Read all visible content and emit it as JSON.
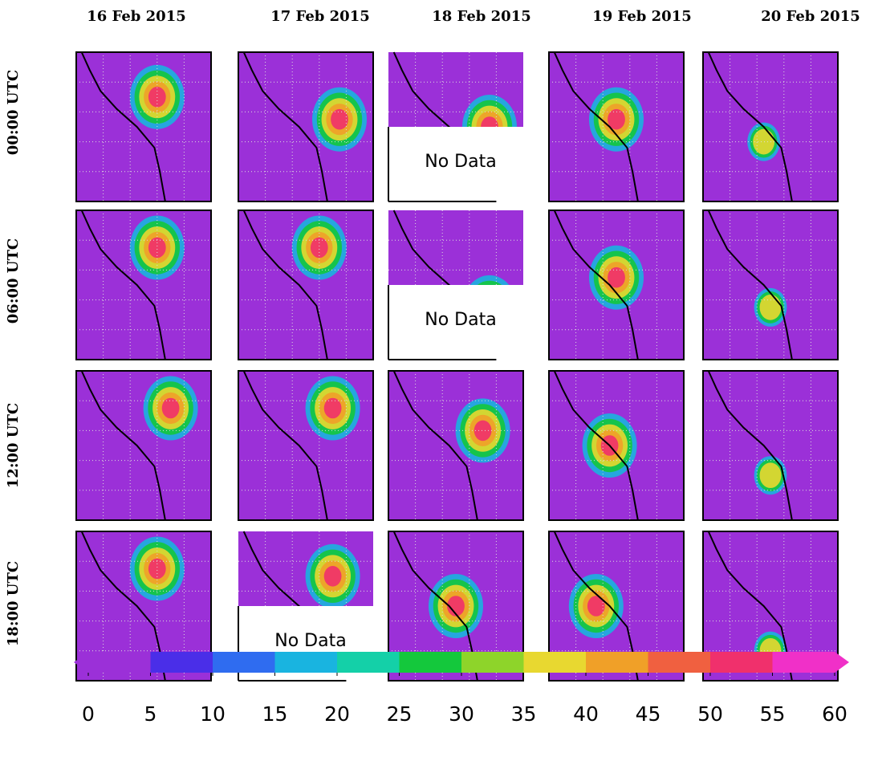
{
  "columns": [
    "16 Feb 2015",
    "17 Feb 2015",
    "18 Feb 2015",
    "19 Feb 2015",
    "20 Feb 2015"
  ],
  "rows": [
    {
      "label": "00:00 UTC",
      "cells": [
        null,
        null,
        "No Data",
        null,
        null
      ]
    },
    {
      "label": "06:00 UTC",
      "cells": [
        null,
        null,
        "No Data",
        null,
        null
      ]
    },
    {
      "label": "12:00 UTC",
      "cells": [
        null,
        null,
        null,
        null,
        null
      ]
    },
    {
      "label": "18:00 UTC",
      "cells": [
        null,
        "No Data",
        null,
        null,
        null
      ]
    }
  ],
  "colorbar": {
    "lim": [
      0,
      60
    ],
    "ticks": [
      0,
      5,
      10,
      15,
      20,
      25,
      30,
      35,
      40,
      45,
      50,
      55,
      60
    ],
    "colors": [
      "#9b30d8",
      "#4a2ee8",
      "#2f6cf0",
      "#19b4e0",
      "#14d0a8",
      "#14c83c",
      "#8ed42a",
      "#e8d830",
      "#f0a028",
      "#f06040",
      "#f0306c",
      "#f030c8"
    ]
  }
}
